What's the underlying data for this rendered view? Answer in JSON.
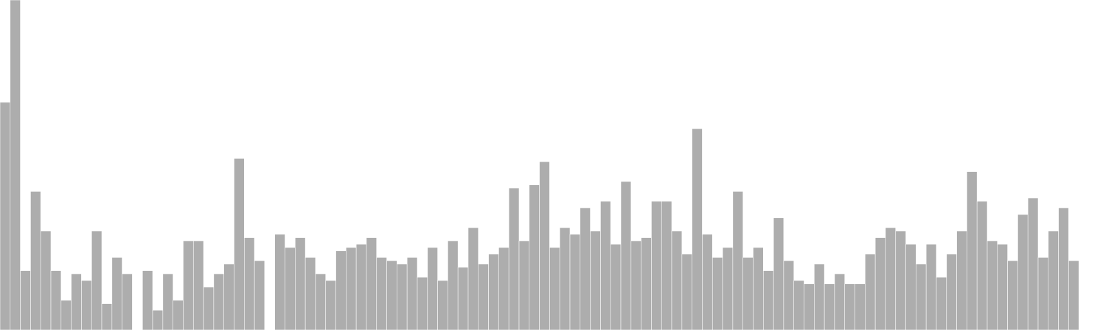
{
  "chart_data": {
    "type": "bar",
    "title": "",
    "xlabel": "",
    "ylabel": "",
    "grid": false,
    "legend": "none",
    "bar_color": "#adadad",
    "ylim": [
      0,
      100
    ],
    "values": [
      69,
      100,
      18,
      42,
      30,
      18,
      9,
      17,
      15,
      30,
      8,
      22,
      17,
      0,
      18,
      6,
      17,
      9,
      27,
      27,
      13,
      17,
      20,
      52,
      28,
      21,
      0,
      29,
      25,
      28,
      22,
      17,
      15,
      24,
      25,
      26,
      28,
      22,
      21,
      20,
      22,
      16,
      25,
      15,
      27,
      19,
      31,
      20,
      23,
      25,
      43,
      27,
      44,
      51,
      25,
      31,
      29,
      37,
      30,
      39,
      26,
      45,
      27,
      28,
      39,
      39,
      30,
      23,
      61,
      29,
      22,
      25,
      42,
      22,
      25,
      18,
      34,
      21,
      15,
      14,
      20,
      14,
      17,
      14,
      14,
      23,
      28,
      31,
      30,
      26,
      20,
      26,
      16,
      23,
      30,
      48,
      39,
      27,
      26,
      21,
      35,
      40,
      22,
      30,
      37,
      21
    ]
  }
}
